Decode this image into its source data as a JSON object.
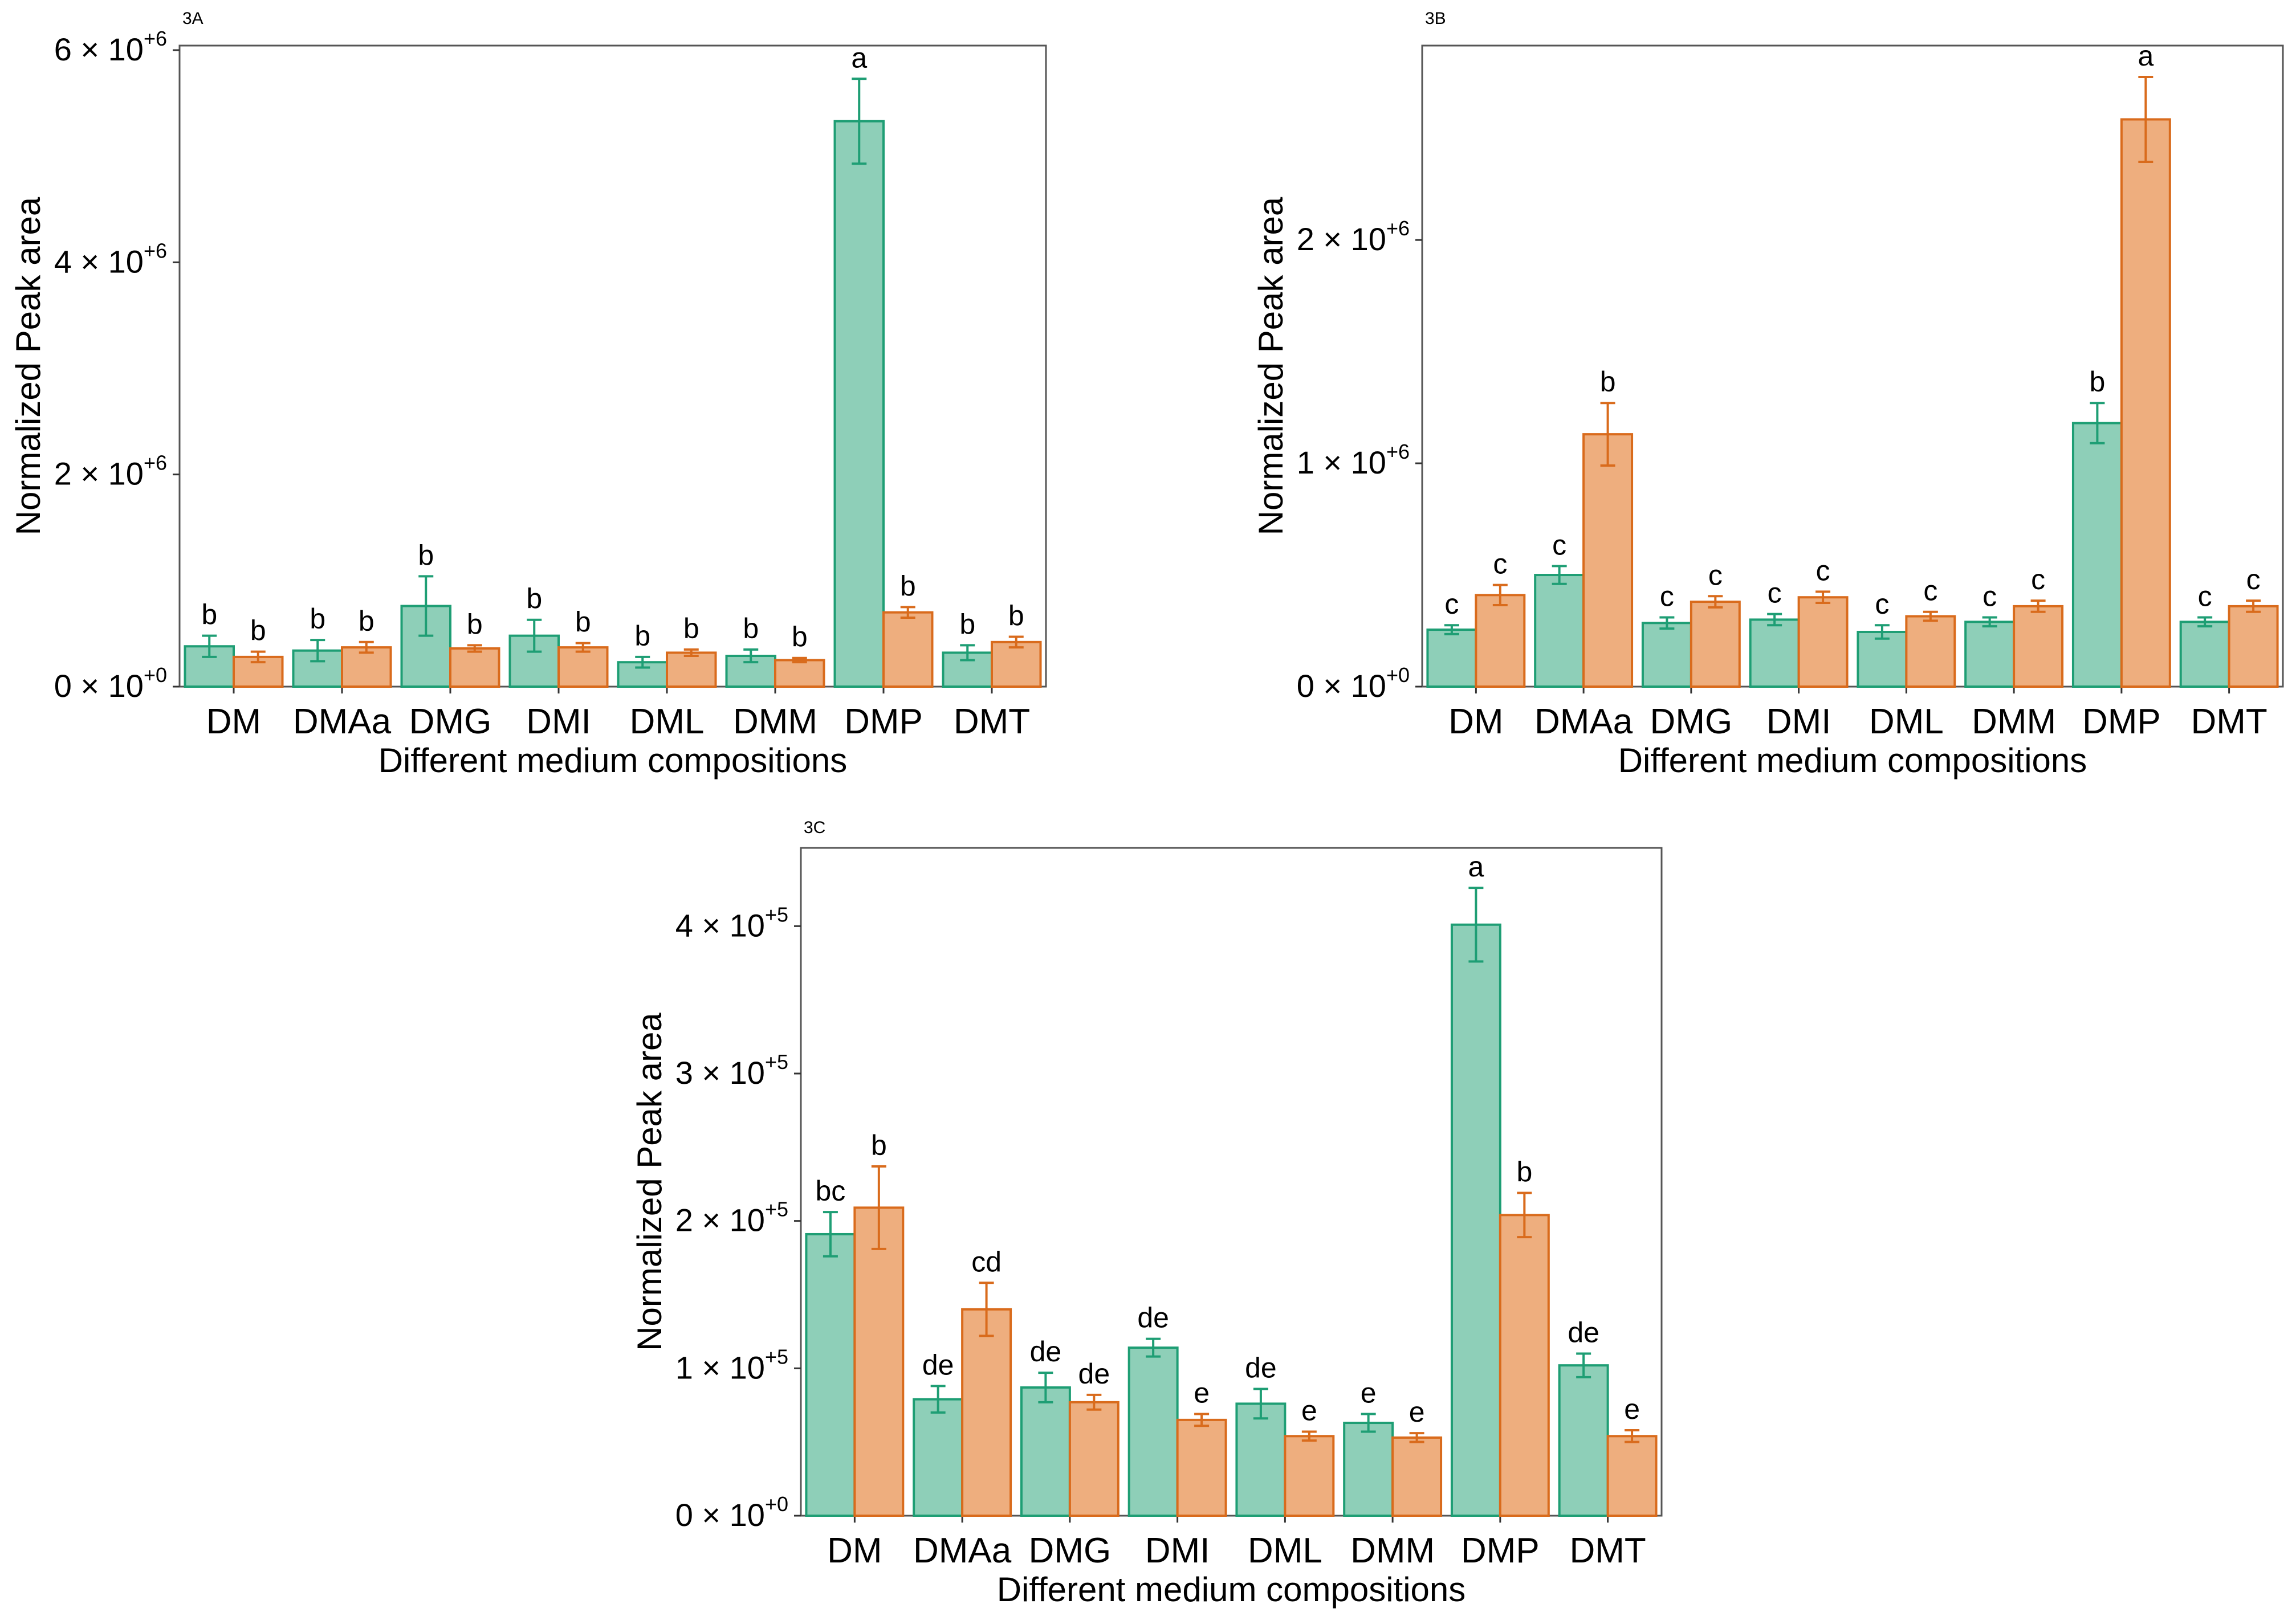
{
  "chart_data": [
    {
      "type": "bar",
      "panel": "3A",
      "title": "",
      "xlabel": "Different medium compositions",
      "ylabel": "Normalized Peak area",
      "categories": [
        "DM",
        "DMAa",
        "DMG",
        "DMI",
        "DML",
        "DMM",
        "DMP",
        "DMT"
      ],
      "ylim": [
        0,
        6000000
      ],
      "yticks": [
        {
          "value": 0,
          "label": "0 × 10",
          "exp": "+0"
        },
        {
          "value": 2000000,
          "label": "2 × 10",
          "exp": "+6"
        },
        {
          "value": 4000000,
          "label": "4 × 10",
          "exp": "+6"
        },
        {
          "value": 6000000,
          "label": "6 × 10",
          "exp": "+6"
        }
      ],
      "series": [
        {
          "name": "series-green",
          "color": "#8ecfb8",
          "stroke": "#1e9e74",
          "values": [
            380000,
            340000,
            760000,
            480000,
            230000,
            290000,
            5330000,
            320000
          ],
          "errors": [
            100000,
            100000,
            280000,
            150000,
            50000,
            60000,
            400000,
            70000
          ],
          "letters": [
            "b",
            "b",
            "b",
            "b",
            "b",
            "b",
            "a",
            "b"
          ]
        },
        {
          "name": "series-orange",
          "color": "#eeae7e",
          "stroke": "#d96b1c",
          "values": [
            280000,
            370000,
            360000,
            370000,
            320000,
            250000,
            700000,
            420000
          ],
          "errors": [
            50000,
            50000,
            30000,
            40000,
            30000,
            20000,
            50000,
            50000
          ],
          "letters": [
            "b",
            "b",
            "b",
            "b",
            "b",
            "b",
            "b",
            "b"
          ]
        }
      ]
    },
    {
      "type": "bar",
      "panel": "3B",
      "title": "",
      "xlabel": "Different medium compositions",
      "ylabel": "Normalized Peak area",
      "categories": [
        "DM",
        "DMAa",
        "DMG",
        "DMI",
        "DML",
        "DMM",
        "DMP",
        "DMT"
      ],
      "ylim": [
        0,
        2850000
      ],
      "yticks": [
        {
          "value": 0,
          "label": "0 × 10",
          "exp": "+0"
        },
        {
          "value": 1000000,
          "label": "1 × 10",
          "exp": "+6"
        },
        {
          "value": 2000000,
          "label": "2 × 10",
          "exp": "+6"
        }
      ],
      "series": [
        {
          "name": "series-green",
          "color": "#8ecfb8",
          "stroke": "#1e9e74",
          "values": [
            255000,
            500000,
            285000,
            300000,
            245000,
            290000,
            1180000,
            290000
          ],
          "errors": [
            20000,
            40000,
            25000,
            25000,
            30000,
            20000,
            90000,
            20000
          ],
          "letters": [
            "c",
            "c",
            "c",
            "c",
            "c",
            "c",
            "b",
            "c"
          ]
        },
        {
          "name": "series-orange",
          "color": "#eeae7e",
          "stroke": "#d96b1c",
          "values": [
            410000,
            1130000,
            380000,
            400000,
            315000,
            360000,
            2540000,
            360000
          ],
          "errors": [
            45000,
            140000,
            25000,
            25000,
            20000,
            25000,
            190000,
            25000
          ],
          "letters": [
            "c",
            "b",
            "c",
            "c",
            "c",
            "c",
            "a",
            "c"
          ]
        }
      ]
    },
    {
      "type": "bar",
      "panel": "3C",
      "title": "",
      "xlabel": "Different medium compositions",
      "ylabel": "Normalized Peak area",
      "categories": [
        "DM",
        "DMAa",
        "DMG",
        "DMI",
        "DML",
        "DMM",
        "DMP",
        "DMT"
      ],
      "ylim": [
        0,
        450000
      ],
      "yticks": [
        {
          "value": 0,
          "label": "0 × 10",
          "exp": "+0"
        },
        {
          "value": 100000,
          "label": "1 × 10",
          "exp": "+5"
        },
        {
          "value": 200000,
          "label": "2 × 10",
          "exp": "+5"
        },
        {
          "value": 300000,
          "label": "3 × 10",
          "exp": "+5"
        },
        {
          "value": 400000,
          "label": "4 × 10",
          "exp": "+5"
        }
      ],
      "series": [
        {
          "name": "series-green",
          "color": "#8ecfb8",
          "stroke": "#1e9e74",
          "values": [
            191000,
            79000,
            87000,
            114000,
            76000,
            63000,
            401000,
            102000
          ],
          "errors": [
            15000,
            9000,
            10000,
            6000,
            10000,
            6000,
            25000,
            8000
          ],
          "letters": [
            "bc",
            "de",
            "de",
            "de",
            "de",
            "e",
            "a",
            "de"
          ]
        },
        {
          "name": "series-orange",
          "color": "#eeae7e",
          "stroke": "#d96b1c",
          "values": [
            209000,
            140000,
            77000,
            65000,
            54000,
            53000,
            204000,
            54000
          ],
          "errors": [
            28000,
            18000,
            5000,
            4000,
            3000,
            3000,
            15000,
            4000
          ],
          "letters": [
            "b",
            "cd",
            "de",
            "e",
            "e",
            "e",
            "b",
            "e"
          ]
        }
      ]
    }
  ]
}
